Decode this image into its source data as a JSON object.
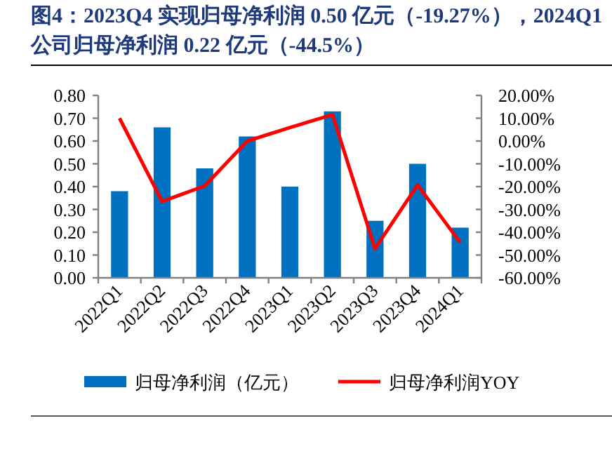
{
  "chart_data": {
    "type": "bar",
    "title": "图4：2023Q4 实现归母净利润 0.50 亿元（-19.27%），2024Q1 公司归母净利润 0.22 亿元（-44.5%）",
    "categories": [
      "2022Q1",
      "2022Q2",
      "2022Q3",
      "2022Q4",
      "2023Q1",
      "2023Q2",
      "2023Q3",
      "2023Q4",
      "2024Q1"
    ],
    "series": [
      {
        "name": "归母净利润（亿元）",
        "color": "#0070c0",
        "values": [
          0.38,
          0.66,
          0.48,
          0.62,
          0.4,
          0.73,
          0.25,
          0.5,
          0.22
        ]
      },
      {
        "name": "归母净利润YOY",
        "type": "line",
        "axis": "y2",
        "color": "#ff0000",
        "values": [
          10.0,
          -26.5,
          -19.7,
          0.0,
          5.9,
          11.6,
          -47.2,
          -19.3,
          -44.5
        ]
      }
    ],
    "ylim": [
      0,
      0.8
    ],
    "yticks": [
      {
        "value": 0,
        "label": "0.00"
      },
      {
        "value": 0.1,
        "label": "0.10"
      },
      {
        "value": 0.2,
        "label": "0.20"
      },
      {
        "value": 0.3,
        "label": "0.30"
      },
      {
        "value": 0.4,
        "label": "0.40"
      },
      {
        "value": 0.5,
        "label": "0.50"
      },
      {
        "value": 0.6,
        "label": "0.60"
      },
      {
        "value": 0.7,
        "label": "0.70"
      },
      {
        "value": 0.8,
        "label": "0.80"
      }
    ],
    "y2lim": [
      -60,
      20
    ],
    "y2ticks": [
      {
        "value": -60,
        "label": "-60.00%"
      },
      {
        "value": -50,
        "label": "-50.00%"
      },
      {
        "value": -40,
        "label": "-40.00%"
      },
      {
        "value": -30,
        "label": "-30.00%"
      },
      {
        "value": -20,
        "label": "-20.00%"
      },
      {
        "value": -10,
        "label": "-10.00%"
      },
      {
        "value": 0,
        "label": "0.00%"
      },
      {
        "value": 10,
        "label": "10.00%"
      },
      {
        "value": 20,
        "label": "20.00%"
      }
    ],
    "legend": "bottom"
  }
}
